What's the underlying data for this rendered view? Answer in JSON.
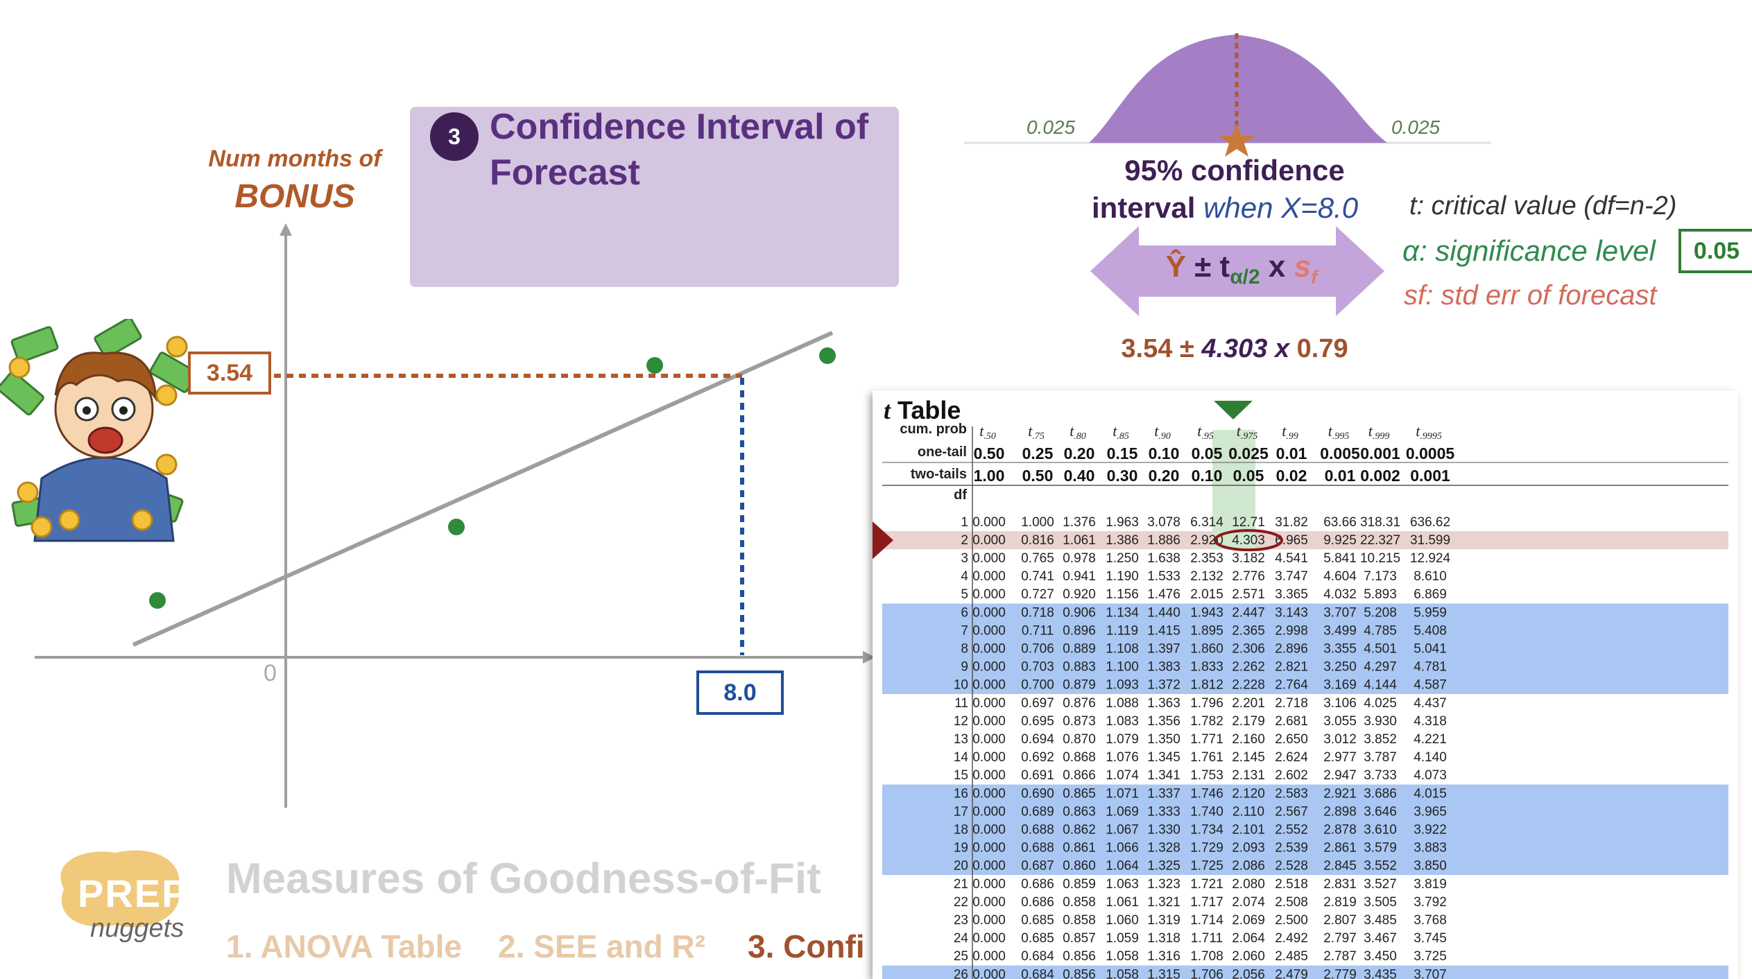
{
  "title": {
    "number": "3",
    "text": "Confidence Interval of Forecast"
  },
  "y_axis_label": {
    "line1": "Num months of",
    "line2": "BONUS"
  },
  "graph": {
    "y_value_label": "3.54",
    "x_value_label": "8.0",
    "origin_label": "0"
  },
  "distribution": {
    "left_tail": "0.025",
    "right_tail": "0.025"
  },
  "confidence": {
    "line1": "95% confidence",
    "line2_bold": "interval",
    "line2_italic": " when X=8.0",
    "formula_yhat": "Ŷ",
    "formula_pm": " ± ",
    "formula_t": "t",
    "formula_t_sub": "α/2",
    "formula_x": " x ",
    "formula_s": "s",
    "formula_s_sub": "f",
    "calc_a": "3.54 ± ",
    "calc_b": "4.303",
    "calc_c": " x ",
    "calc_d": "0.79"
  },
  "legend": {
    "t_def": "t: critical value (df=n-2)",
    "alpha_def": "α: significance level",
    "alpha_value": "0.05",
    "sf_def": "sf: std err of forecast"
  },
  "colors": {
    "purple": "#a47fc6",
    "brown": "#b05a2a",
    "blue": "#1f4f9a",
    "green": "#2e7d32",
    "highlight_blue": "#a9c7f2",
    "highlight_row": "#e8d3cf",
    "highlight_col": "#cfe8cf"
  },
  "t_table": {
    "title_t": "t",
    "title_rest": " Table",
    "labels": {
      "cum": "cum. prob",
      "one": "one-tail",
      "two": "two-tails",
      "df": "df"
    },
    "columns": [
      {
        "t": "t",
        "sub": ".50",
        "one": "0.50",
        "two": "1.00"
      },
      {
        "t": "t",
        "sub": ".75",
        "one": "0.25",
        "two": "0.50"
      },
      {
        "t": "t",
        "sub": ".80",
        "one": "0.20",
        "two": "0.40"
      },
      {
        "t": "t",
        "sub": ".85",
        "one": "0.15",
        "two": "0.30"
      },
      {
        "t": "t",
        "sub": ".90",
        "one": "0.10",
        "two": "0.20"
      },
      {
        "t": "t",
        "sub": ".95",
        "one": "0.05",
        "two": "0.10"
      },
      {
        "t": "t",
        "sub": ".975",
        "one": "0.025",
        "two": "0.05"
      },
      {
        "t": "t",
        "sub": ".99",
        "one": "0.01",
        "two": "0.02"
      },
      {
        "t": "t",
        "sub": ".995",
        "one": "0.005",
        "two": "0.01"
      },
      {
        "t": "t",
        "sub": ".999",
        "one": "0.001",
        "two": "0.002"
      },
      {
        "t": "t",
        "sub": ".9995",
        "one": "0.0005",
        "two": "0.001"
      }
    ],
    "rows": [
      {
        "df": "1",
        "v": [
          "0.000",
          "1.000",
          "1.376",
          "1.963",
          "3.078",
          "6.314",
          "12.71",
          "31.82",
          "63.66",
          "318.31",
          "636.62"
        ]
      },
      {
        "df": "2",
        "v": [
          "0.000",
          "0.816",
          "1.061",
          "1.386",
          "1.886",
          "2.920",
          "4.303",
          "6.965",
          "9.925",
          "22.327",
          "31.599"
        ]
      },
      {
        "df": "3",
        "v": [
          "0.000",
          "0.765",
          "0.978",
          "1.250",
          "1.638",
          "2.353",
          "3.182",
          "4.541",
          "5.841",
          "10.215",
          "12.924"
        ]
      },
      {
        "df": "4",
        "v": [
          "0.000",
          "0.741",
          "0.941",
          "1.190",
          "1.533",
          "2.132",
          "2.776",
          "3.747",
          "4.604",
          "7.173",
          "8.610"
        ]
      },
      {
        "df": "5",
        "v": [
          "0.000",
          "0.727",
          "0.920",
          "1.156",
          "1.476",
          "2.015",
          "2.571",
          "3.365",
          "4.032",
          "5.893",
          "6.869"
        ]
      },
      {
        "df": "6",
        "v": [
          "0.000",
          "0.718",
          "0.906",
          "1.134",
          "1.440",
          "1.943",
          "2.447",
          "3.143",
          "3.707",
          "5.208",
          "5.959"
        ]
      },
      {
        "df": "7",
        "v": [
          "0.000",
          "0.711",
          "0.896",
          "1.119",
          "1.415",
          "1.895",
          "2.365",
          "2.998",
          "3.499",
          "4.785",
          "5.408"
        ]
      },
      {
        "df": "8",
        "v": [
          "0.000",
          "0.706",
          "0.889",
          "1.108",
          "1.397",
          "1.860",
          "2.306",
          "2.896",
          "3.355",
          "4.501",
          "5.041"
        ]
      },
      {
        "df": "9",
        "v": [
          "0.000",
          "0.703",
          "0.883",
          "1.100",
          "1.383",
          "1.833",
          "2.262",
          "2.821",
          "3.250",
          "4.297",
          "4.781"
        ]
      },
      {
        "df": "10",
        "v": [
          "0.000",
          "0.700",
          "0.879",
          "1.093",
          "1.372",
          "1.812",
          "2.228",
          "2.764",
          "3.169",
          "4.144",
          "4.587"
        ]
      },
      {
        "df": "11",
        "v": [
          "0.000",
          "0.697",
          "0.876",
          "1.088",
          "1.363",
          "1.796",
          "2.201",
          "2.718",
          "3.106",
          "4.025",
          "4.437"
        ]
      },
      {
        "df": "12",
        "v": [
          "0.000",
          "0.695",
          "0.873",
          "1.083",
          "1.356",
          "1.782",
          "2.179",
          "2.681",
          "3.055",
          "3.930",
          "4.318"
        ]
      },
      {
        "df": "13",
        "v": [
          "0.000",
          "0.694",
          "0.870",
          "1.079",
          "1.350",
          "1.771",
          "2.160",
          "2.650",
          "3.012",
          "3.852",
          "4.221"
        ]
      },
      {
        "df": "14",
        "v": [
          "0.000",
          "0.692",
          "0.868",
          "1.076",
          "1.345",
          "1.761",
          "2.145",
          "2.624",
          "2.977",
          "3.787",
          "4.140"
        ]
      },
      {
        "df": "15",
        "v": [
          "0.000",
          "0.691",
          "0.866",
          "1.074",
          "1.341",
          "1.753",
          "2.131",
          "2.602",
          "2.947",
          "3.733",
          "4.073"
        ]
      },
      {
        "df": "16",
        "v": [
          "0.000",
          "0.690",
          "0.865",
          "1.071",
          "1.337",
          "1.746",
          "2.120",
          "2.583",
          "2.921",
          "3.686",
          "4.015"
        ]
      },
      {
        "df": "17",
        "v": [
          "0.000",
          "0.689",
          "0.863",
          "1.069",
          "1.333",
          "1.740",
          "2.110",
          "2.567",
          "2.898",
          "3.646",
          "3.965"
        ]
      },
      {
        "df": "18",
        "v": [
          "0.000",
          "0.688",
          "0.862",
          "1.067",
          "1.330",
          "1.734",
          "2.101",
          "2.552",
          "2.878",
          "3.610",
          "3.922"
        ]
      },
      {
        "df": "19",
        "v": [
          "0.000",
          "0.688",
          "0.861",
          "1.066",
          "1.328",
          "1.729",
          "2.093",
          "2.539",
          "2.861",
          "3.579",
          "3.883"
        ]
      },
      {
        "df": "20",
        "v": [
          "0.000",
          "0.687",
          "0.860",
          "1.064",
          "1.325",
          "1.725",
          "2.086",
          "2.528",
          "2.845",
          "3.552",
          "3.850"
        ]
      },
      {
        "df": "21",
        "v": [
          "0.000",
          "0.686",
          "0.859",
          "1.063",
          "1.323",
          "1.721",
          "2.080",
          "2.518",
          "2.831",
          "3.527",
          "3.819"
        ]
      },
      {
        "df": "22",
        "v": [
          "0.000",
          "0.686",
          "0.858",
          "1.061",
          "1.321",
          "1.717",
          "2.074",
          "2.508",
          "2.819",
          "3.505",
          "3.792"
        ]
      },
      {
        "df": "23",
        "v": [
          "0.000",
          "0.685",
          "0.858",
          "1.060",
          "1.319",
          "1.714",
          "2.069",
          "2.500",
          "2.807",
          "3.485",
          "3.768"
        ]
      },
      {
        "df": "24",
        "v": [
          "0.000",
          "0.685",
          "0.857",
          "1.059",
          "1.318",
          "1.711",
          "2.064",
          "2.492",
          "2.797",
          "3.467",
          "3.745"
        ]
      },
      {
        "df": "25",
        "v": [
          "0.000",
          "0.684",
          "0.856",
          "1.058",
          "1.316",
          "1.708",
          "2.060",
          "2.485",
          "2.787",
          "3.450",
          "3.725"
        ]
      },
      {
        "df": "26",
        "v": [
          "0.000",
          "0.684",
          "0.856",
          "1.058",
          "1.315",
          "1.706",
          "2.056",
          "2.479",
          "2.779",
          "3.435",
          "3.707"
        ]
      }
    ]
  },
  "branding": {
    "logo_top": "PREP",
    "logo_bottom": "nuggets"
  },
  "bottom": {
    "title": "Measures of Goodness-of-Fit",
    "nav1": "1. ANOVA Table",
    "nav2": "2. SEE and R²",
    "nav3": "3. Confi"
  }
}
